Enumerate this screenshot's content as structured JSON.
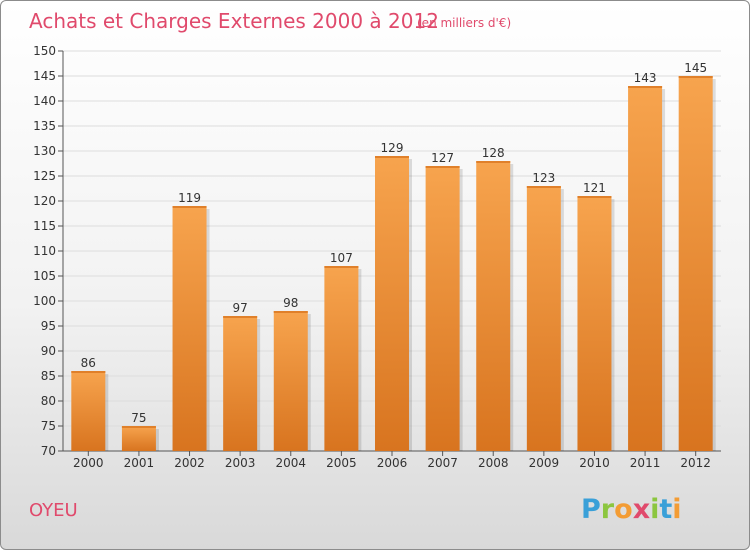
{
  "chart_data": {
    "type": "bar",
    "title": "Achats et Charges Externes 2000 à 2012",
    "subtitle": "(en milliers d'€)",
    "categories": [
      "2000",
      "2001",
      "2002",
      "2003",
      "2004",
      "2005",
      "2006",
      "2007",
      "2008",
      "2009",
      "2010",
      "2011",
      "2012"
    ],
    "values": [
      86,
      75,
      119,
      97,
      98,
      107,
      129,
      127,
      128,
      123,
      121,
      143,
      145
    ],
    "ylim": [
      70,
      150
    ],
    "yticks": [
      70,
      75,
      80,
      85,
      90,
      95,
      100,
      105,
      110,
      115,
      120,
      125,
      130,
      135,
      140,
      145,
      150
    ],
    "grid": true,
    "bar_color": "#f0953b"
  },
  "place_name": "OYEU",
  "logo": {
    "letters": [
      "P",
      "r",
      "o",
      "x",
      "i",
      "t",
      "i"
    ],
    "colors": [
      "#3aa0d8",
      "#8cc63f",
      "#f39c34",
      "#e04a6c",
      "#8cc63f",
      "#3aa0d8",
      "#f39c34"
    ]
  }
}
